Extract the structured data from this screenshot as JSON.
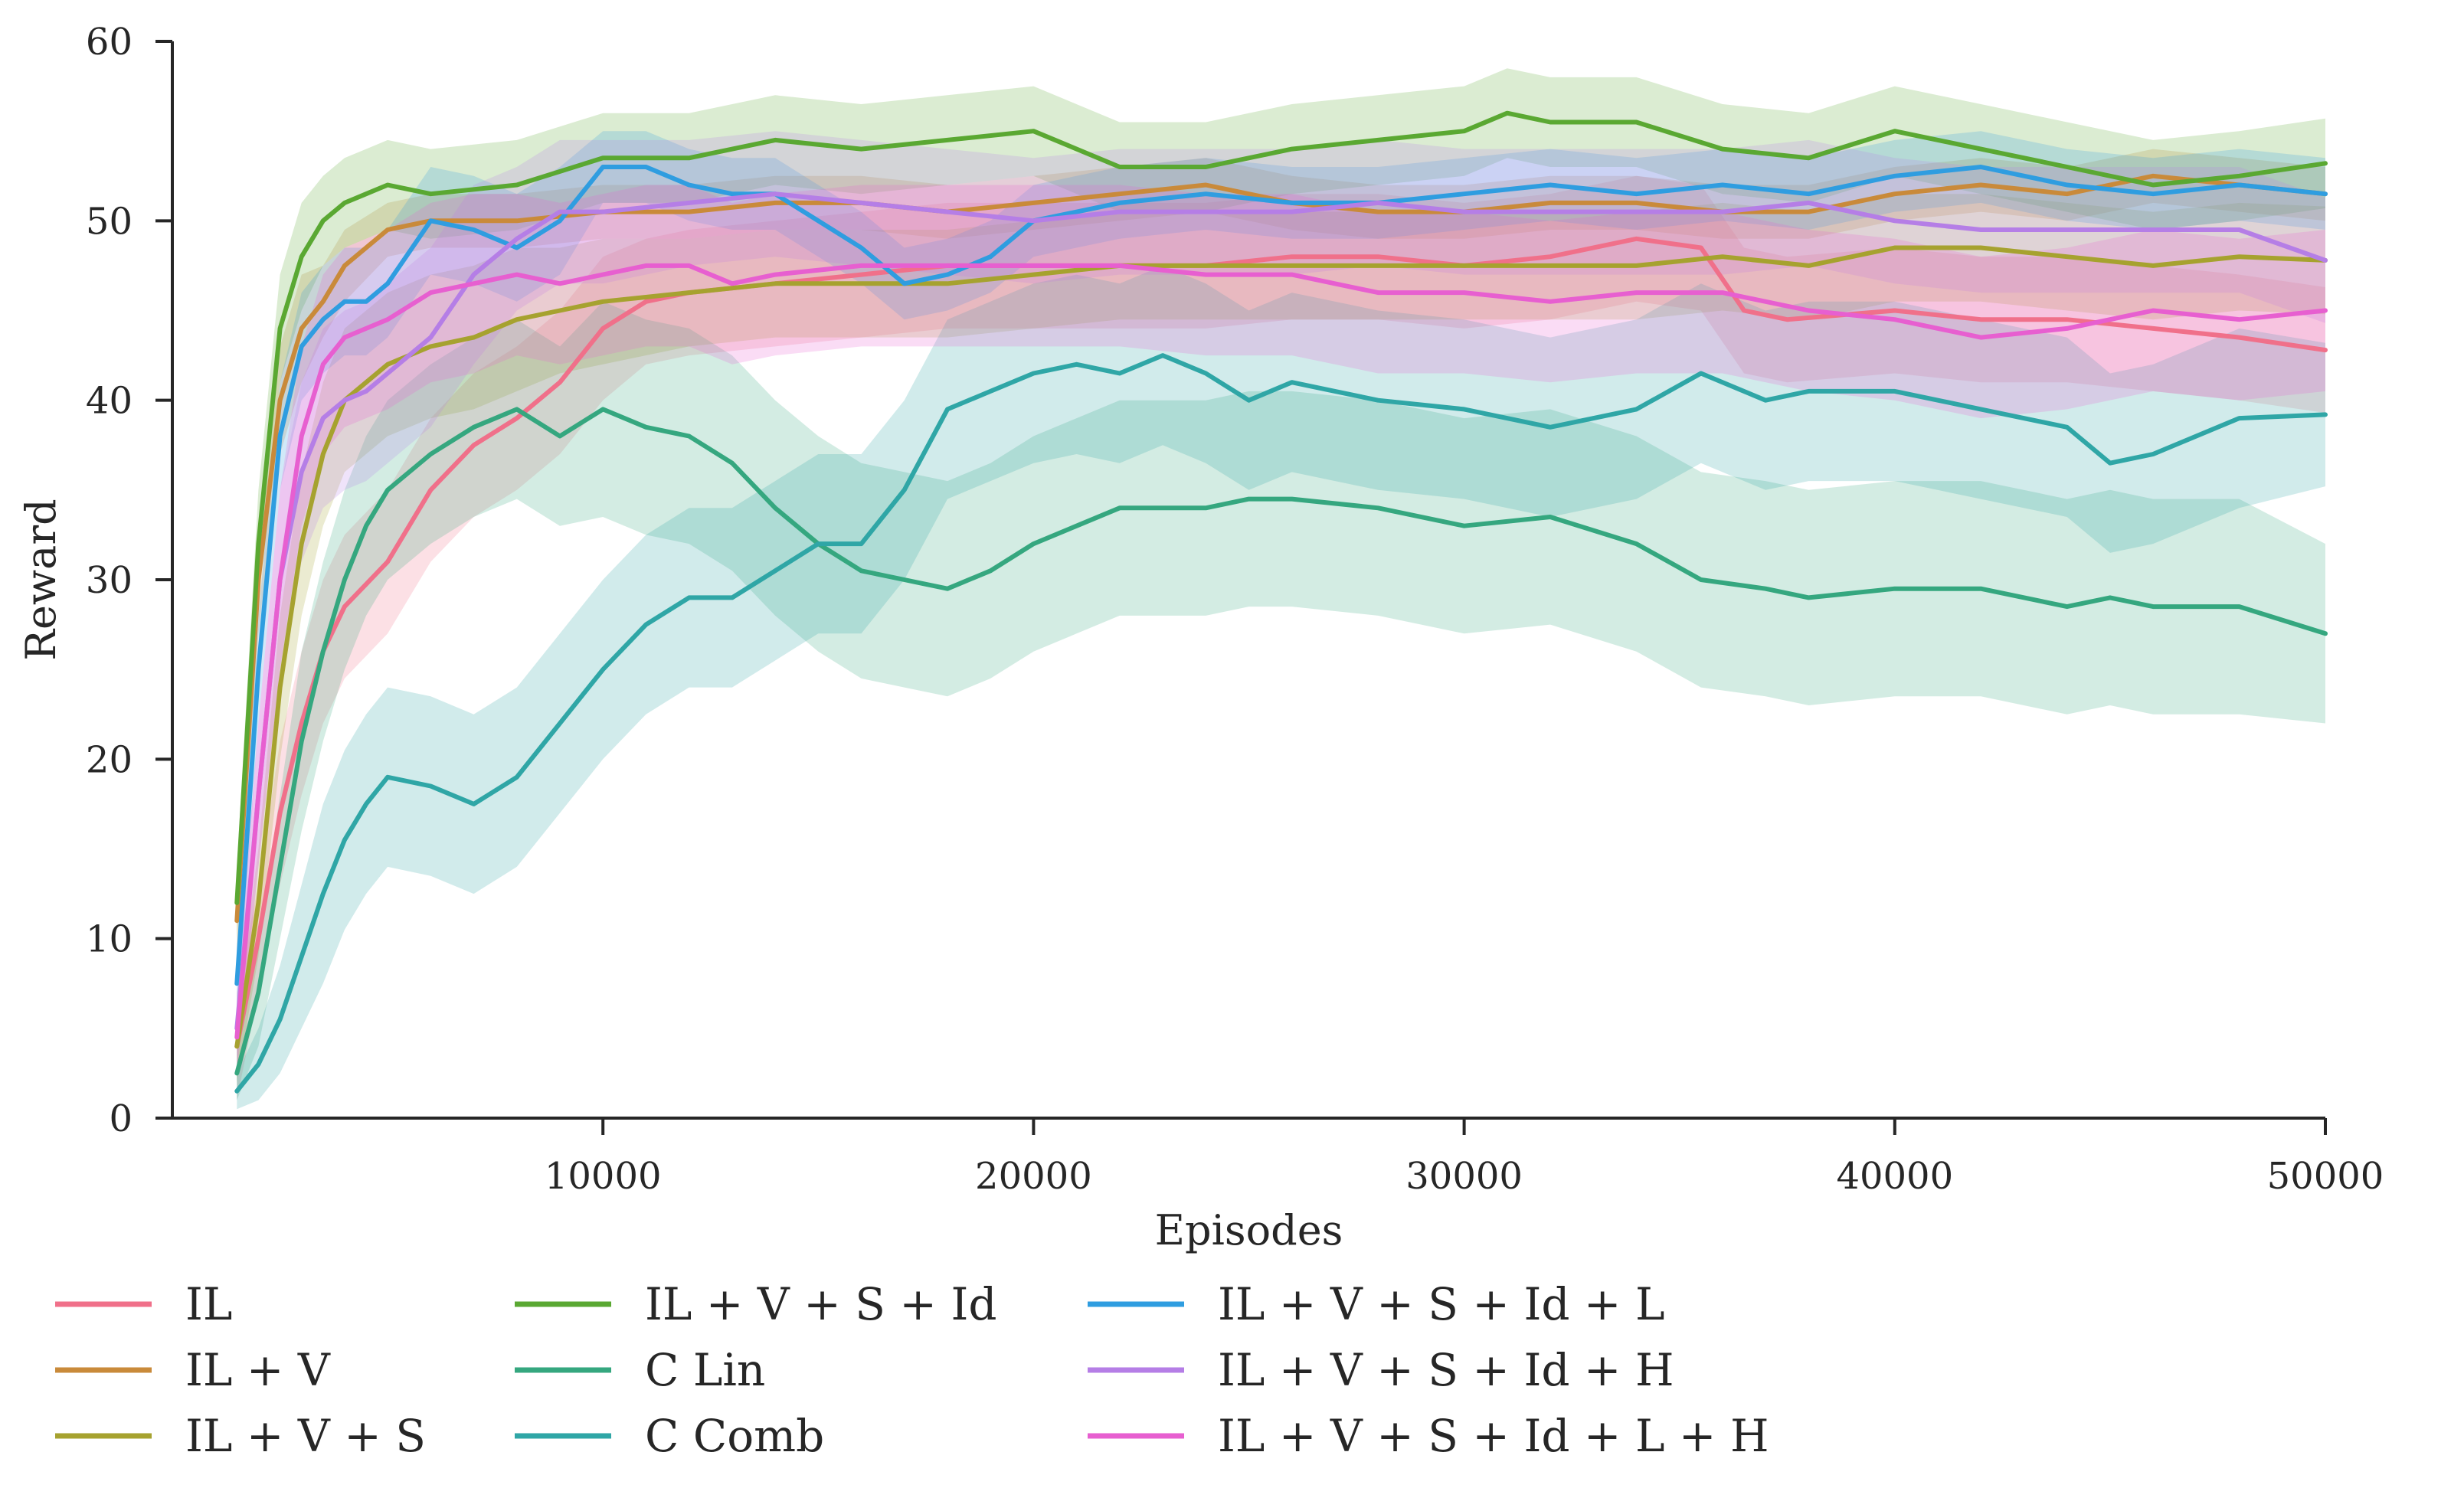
{
  "chart_data": {
    "type": "line",
    "title": "",
    "xlabel": "Episodes",
    "ylabel": "Reward",
    "xlim": [
      0,
      50000
    ],
    "ylim": [
      0,
      60
    ],
    "xticks": [
      10000,
      20000,
      30000,
      40000,
      50000
    ],
    "yticks": [
      0,
      10,
      20,
      30,
      40,
      50,
      60
    ],
    "xtick_labels": [
      "10000",
      "20000",
      "30000",
      "40000",
      "50000"
    ],
    "ytick_labels": [
      "0",
      "10",
      "20",
      "30",
      "40",
      "50",
      "60"
    ],
    "grid": false,
    "legend_position": "bottom",
    "shaded_band": "variability band around each mean curve",
    "series": [
      {
        "name": "IL",
        "color": "#f0708a",
        "x": [
          1500,
          2000,
          2500,
          3000,
          3500,
          4000,
          5000,
          6000,
          7000,
          8000,
          9000,
          10000,
          11000,
          12000,
          14000,
          16000,
          18000,
          20000,
          22000,
          24000,
          26000,
          28000,
          30000,
          32000,
          34000,
          35500,
          36500,
          37500,
          40000,
          42000,
          44000,
          46000,
          48000,
          50000
        ],
        "y": [
          4,
          10,
          17,
          22,
          26,
          28.5,
          31,
          35,
          37.5,
          39,
          41,
          44,
          45.5,
          46,
          46.5,
          47,
          47.5,
          47.5,
          47.5,
          47.5,
          48,
          48,
          47.5,
          48,
          49,
          48.5,
          45,
          44.5,
          45,
          44.5,
          44.5,
          44,
          43.5,
          42.8
        ],
        "band": [
          3,
          3,
          4,
          4,
          4,
          4,
          4,
          4,
          4,
          4,
          4,
          4,
          3.5,
          3.5,
          3.5,
          3.5,
          3.5,
          3.5,
          3.5,
          3.5,
          3.5,
          3.5,
          3.5,
          3.5,
          3.5,
          3.5,
          3.5,
          3.5,
          3.5,
          3.5,
          3.5,
          3.5,
          3.5,
          3.5
        ]
      },
      {
        "name": "IL + V",
        "color": "#c98a3a",
        "x": [
          1500,
          2000,
          2500,
          3000,
          3500,
          4000,
          5000,
          6000,
          8000,
          10000,
          12000,
          14000,
          16000,
          18000,
          20000,
          22000,
          24000,
          26000,
          28000,
          30000,
          32000,
          34000,
          36000,
          38000,
          40000,
          42000,
          44000,
          46000,
          48000,
          50000
        ],
        "y": [
          11,
          30,
          40,
          44,
          45.5,
          47.5,
          49.5,
          50,
          50,
          50.5,
          50.5,
          51,
          51,
          50.5,
          51,
          51.5,
          52,
          51,
          50.5,
          50.5,
          51,
          51,
          50.5,
          50.5,
          51.5,
          52,
          51.5,
          52.5,
          52,
          51.5
        ],
        "band": [
          2,
          3,
          3,
          3,
          2,
          2,
          1.5,
          1.5,
          1.5,
          1.5,
          1.5,
          1.5,
          1.5,
          1.5,
          1.5,
          1.5,
          1.5,
          1.5,
          1.5,
          1.5,
          1.5,
          1.5,
          1.5,
          1.5,
          1.5,
          1.5,
          1.5,
          1.5,
          1.5,
          1.5
        ]
      },
      {
        "name": "IL + V + S",
        "color": "#a6a22f",
        "x": [
          1500,
          2000,
          2500,
          3000,
          3500,
          4000,
          5000,
          6000,
          7000,
          8000,
          9000,
          10000,
          12000,
          14000,
          16000,
          18000,
          20000,
          22000,
          24000,
          26000,
          28000,
          30000,
          32000,
          34000,
          36000,
          38000,
          40000,
          42000,
          44000,
          46000,
          48000,
          50000
        ],
        "y": [
          4,
          12,
          24,
          32,
          37,
          40,
          42,
          43,
          43.5,
          44.5,
          45,
          45.5,
          46,
          46.5,
          46.5,
          46.5,
          47,
          47.5,
          47.5,
          47.5,
          47.5,
          47.5,
          47.5,
          47.5,
          48,
          47.5,
          48.5,
          48.5,
          48,
          47.5,
          48,
          47.8
        ],
        "band": [
          2,
          3,
          4,
          4,
          4,
          4,
          4,
          4,
          4,
          4,
          3.5,
          3.5,
          3,
          3,
          3,
          3,
          3,
          3,
          3,
          3,
          3,
          3,
          3,
          3,
          3,
          3,
          3,
          3,
          3,
          3,
          3,
          3
        ]
      },
      {
        "name": "IL + V + S + Id",
        "color": "#5aa832",
        "x": [
          1500,
          2000,
          2500,
          3000,
          3500,
          4000,
          4500,
          5000,
          6000,
          8000,
          10000,
          12000,
          14000,
          16000,
          18000,
          20000,
          22000,
          24000,
          26000,
          28000,
          30000,
          31000,
          32000,
          34000,
          36000,
          38000,
          40000,
          42000,
          44000,
          46000,
          48000,
          50000
        ],
        "y": [
          12,
          32,
          44,
          48,
          50,
          51,
          51.5,
          52,
          51.5,
          52,
          53.5,
          53.5,
          54.5,
          54,
          54.5,
          55,
          53,
          53,
          54,
          54.5,
          55,
          56,
          55.5,
          55.5,
          54,
          53.5,
          55,
          54,
          53,
          52,
          52.5,
          53.2
        ],
        "band": [
          2,
          3,
          3,
          3,
          2.5,
          2.5,
          2.5,
          2.5,
          2.5,
          2.5,
          2.5,
          2.5,
          2.5,
          2.5,
          2.5,
          2.5,
          2.5,
          2.5,
          2.5,
          2.5,
          2.5,
          2.5,
          2.5,
          2.5,
          2.5,
          2.5,
          2.5,
          2.5,
          2.5,
          2.5,
          2.5,
          2.5
        ]
      },
      {
        "name": "C Lin",
        "color": "#35a77f",
        "x": [
          1500,
          2000,
          2500,
          3000,
          3500,
          4000,
          4500,
          5000,
          6000,
          7000,
          8000,
          9000,
          10000,
          11000,
          12000,
          13000,
          14000,
          15000,
          16000,
          17000,
          18000,
          19000,
          20000,
          21000,
          22000,
          23000,
          24000,
          25000,
          26000,
          28000,
          30000,
          32000,
          34000,
          35500,
          37000,
          38000,
          40000,
          42000,
          44000,
          45000,
          46000,
          48000,
          50000
        ],
        "y": [
          2.5,
          7,
          14,
          21,
          26,
          30,
          33,
          35,
          37,
          38.5,
          39.5,
          38,
          39.5,
          38.5,
          38,
          36.5,
          34,
          32,
          30.5,
          30,
          29.5,
          30.5,
          32,
          33,
          34,
          34,
          34,
          34.5,
          34.5,
          34,
          33,
          33.5,
          32,
          30,
          29.5,
          29,
          29.5,
          29.5,
          28.5,
          29,
          28.5,
          28.5,
          27
        ],
        "band": [
          1.5,
          3,
          4,
          5,
          5,
          5,
          5,
          5,
          5,
          5,
          5,
          5,
          6,
          6,
          6,
          6,
          6,
          6,
          6,
          6,
          6,
          6,
          6,
          6,
          6,
          6,
          6,
          6,
          6,
          6,
          6,
          6,
          6,
          6,
          6,
          6,
          6,
          6,
          6,
          6,
          6,
          6,
          5
        ]
      },
      {
        "name": "C Comb",
        "color": "#2fa6a6",
        "x": [
          1500,
          2000,
          2500,
          3000,
          3500,
          4000,
          4500,
          5000,
          6000,
          7000,
          8000,
          9000,
          10000,
          11000,
          12000,
          13000,
          14000,
          15000,
          16000,
          17000,
          18000,
          19000,
          20000,
          21000,
          22000,
          23000,
          24000,
          25000,
          26000,
          28000,
          30000,
          32000,
          34000,
          35500,
          37000,
          38000,
          40000,
          42000,
          44000,
          45000,
          46000,
          48000,
          50000
        ],
        "y": [
          1.5,
          3,
          5.5,
          9,
          12.5,
          15.5,
          17.5,
          19,
          18.5,
          17.5,
          19,
          22,
          25,
          27.5,
          29,
          29,
          30.5,
          32,
          32,
          35,
          39.5,
          40.5,
          41.5,
          42,
          41.5,
          42.5,
          41.5,
          40,
          41,
          40,
          39.5,
          38.5,
          39.5,
          41.5,
          40,
          40.5,
          40.5,
          39.5,
          38.5,
          36.5,
          37,
          39,
          39.2
        ],
        "band": [
          1,
          2,
          3,
          4,
          5,
          5,
          5,
          5,
          5,
          5,
          5,
          5,
          5,
          5,
          5,
          5,
          5,
          5,
          5,
          5,
          5,
          5,
          5,
          5,
          5,
          5,
          5,
          5,
          5,
          5,
          5,
          5,
          5,
          5,
          5,
          5,
          5,
          5,
          5,
          5,
          5,
          5,
          4
        ]
      },
      {
        "name": "IL + V + S + Id + L",
        "color": "#2f9de0",
        "x": [
          1500,
          2000,
          2500,
          3000,
          3500,
          4000,
          4500,
          5000,
          6000,
          7000,
          8000,
          9000,
          10000,
          11000,
          12000,
          13000,
          14000,
          15000,
          16000,
          17000,
          18000,
          19000,
          20000,
          22000,
          24000,
          26000,
          28000,
          30000,
          32000,
          34000,
          36000,
          38000,
          40000,
          42000,
          44000,
          46000,
          48000,
          50000
        ],
        "y": [
          7.5,
          25,
          38,
          43,
          44.5,
          45.5,
          45.5,
          46.5,
          50,
          49.5,
          48.5,
          50,
          53,
          53,
          52,
          51.5,
          51.5,
          50,
          48.5,
          46.5,
          47,
          48,
          50,
          51,
          51.5,
          51,
          51,
          51.5,
          52,
          51.5,
          52,
          51.5,
          52.5,
          53,
          52,
          51.5,
          52,
          51.5
        ],
        "band": [
          2,
          3,
          3,
          3,
          3,
          3,
          3,
          3,
          3,
          3,
          3,
          3,
          2,
          2,
          2,
          2,
          2,
          2,
          2,
          2,
          2,
          2,
          2,
          2,
          2,
          2,
          2,
          2,
          2,
          2,
          2,
          2,
          2,
          2,
          2,
          2,
          2,
          2
        ]
      },
      {
        "name": "IL + V + S + Id + H",
        "color": "#b57ee6",
        "x": [
          1500,
          2000,
          2500,
          3000,
          3500,
          4000,
          4500,
          5000,
          6000,
          7000,
          8000,
          9000,
          10000,
          12000,
          14000,
          16000,
          18000,
          20000,
          22000,
          24000,
          26000,
          28000,
          30000,
          32000,
          34000,
          36000,
          38000,
          40000,
          42000,
          44000,
          46000,
          48000,
          50000
        ],
        "y": [
          5,
          18,
          30,
          36,
          39,
          40,
          40.5,
          41.5,
          43.5,
          47,
          49,
          50.5,
          50.5,
          51,
          51.5,
          51,
          50.5,
          50,
          50.5,
          50.5,
          50.5,
          51,
          50.5,
          50.5,
          50.5,
          50.5,
          51,
          50,
          49.5,
          49.5,
          49.5,
          49.5,
          47.8
        ],
        "band": [
          2,
          4,
          5,
          5,
          5,
          5,
          5,
          5,
          5,
          5,
          4,
          4,
          4,
          3.5,
          3.5,
          3.5,
          3.5,
          3.5,
          3.5,
          3.5,
          3.5,
          3.5,
          3.5,
          3.5,
          3.5,
          3.5,
          3.5,
          3.5,
          3.5,
          3.5,
          3.5,
          3.5,
          3.5
        ]
      },
      {
        "name": "IL + V + S + Id + L + H",
        "color": "#e75fd0",
        "x": [
          1500,
          2000,
          2500,
          3000,
          3500,
          4000,
          4500,
          5000,
          6000,
          7000,
          8000,
          9000,
          10000,
          11000,
          12000,
          13000,
          14000,
          16000,
          18000,
          20000,
          22000,
          24000,
          26000,
          28000,
          30000,
          32000,
          34000,
          36000,
          38000,
          40000,
          42000,
          44000,
          46000,
          48000,
          50000
        ],
        "y": [
          4.5,
          18,
          30,
          38,
          42,
          43.5,
          44,
          44.5,
          46,
          46.5,
          47,
          46.5,
          47,
          47.5,
          47.5,
          46.5,
          47,
          47.5,
          47.5,
          47.5,
          47.5,
          47,
          47,
          46,
          46,
          45.5,
          46,
          46,
          45,
          44.5,
          43.5,
          44,
          45,
          44.5,
          45
        ],
        "band": [
          2,
          4,
          5,
          5,
          5,
          5,
          5,
          5,
          5,
          5,
          4.5,
          4.5,
          4.5,
          4.5,
          4.5,
          4.5,
          4.5,
          4.5,
          4.5,
          4.5,
          4.5,
          4.5,
          4.5,
          4.5,
          4.5,
          4.5,
          4.5,
          4.5,
          4.5,
          4.5,
          4.5,
          4.5,
          4.5,
          4.5,
          4.5
        ]
      }
    ]
  }
}
